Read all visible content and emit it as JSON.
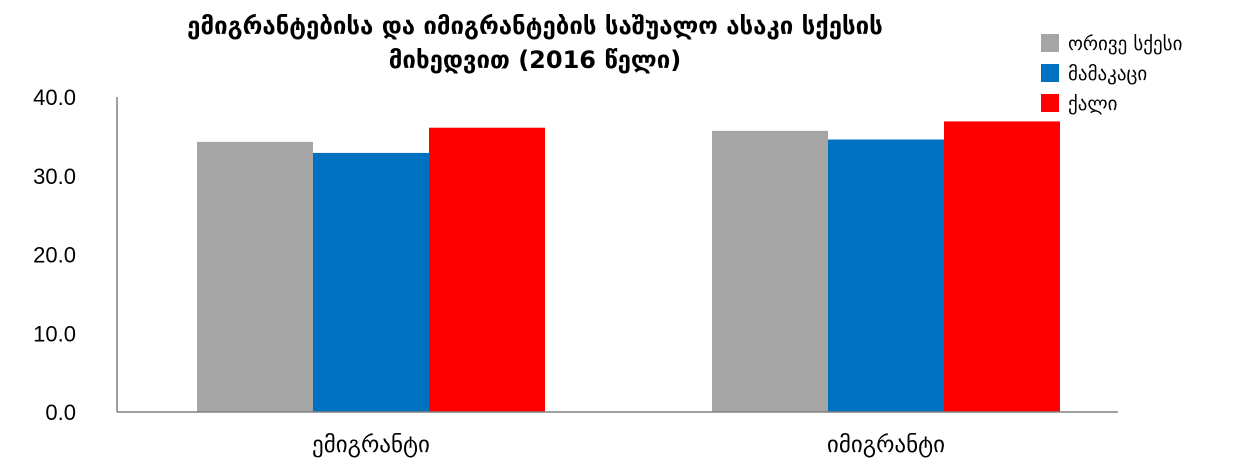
{
  "chart_data": {
    "type": "bar",
    "title_lines": [
      "ემიგრანტებისა და იმიგრანტების საშუალო ასაკი სქესის",
      "მიხედვით (2016 წელი)"
    ],
    "categories": [
      "ემიგრანტი",
      "იმიგრანტი"
    ],
    "series": [
      {
        "name": "ორივე სქესი",
        "color": "#A5A5A5",
        "values": [
          34.3,
          35.7
        ]
      },
      {
        "name": "მამაკაცი",
        "color": "#0070C0",
        "values": [
          32.9,
          34.6
        ]
      },
      {
        "name": "ქალი",
        "color": "#FF0000",
        "values": [
          36.1,
          36.9
        ]
      }
    ],
    "yticks": [
      "0.0",
      "10.0",
      "20.0",
      "30.0",
      "40.0"
    ],
    "ylim": [
      0,
      40
    ],
    "grid": false,
    "legend_position": "top-right"
  }
}
